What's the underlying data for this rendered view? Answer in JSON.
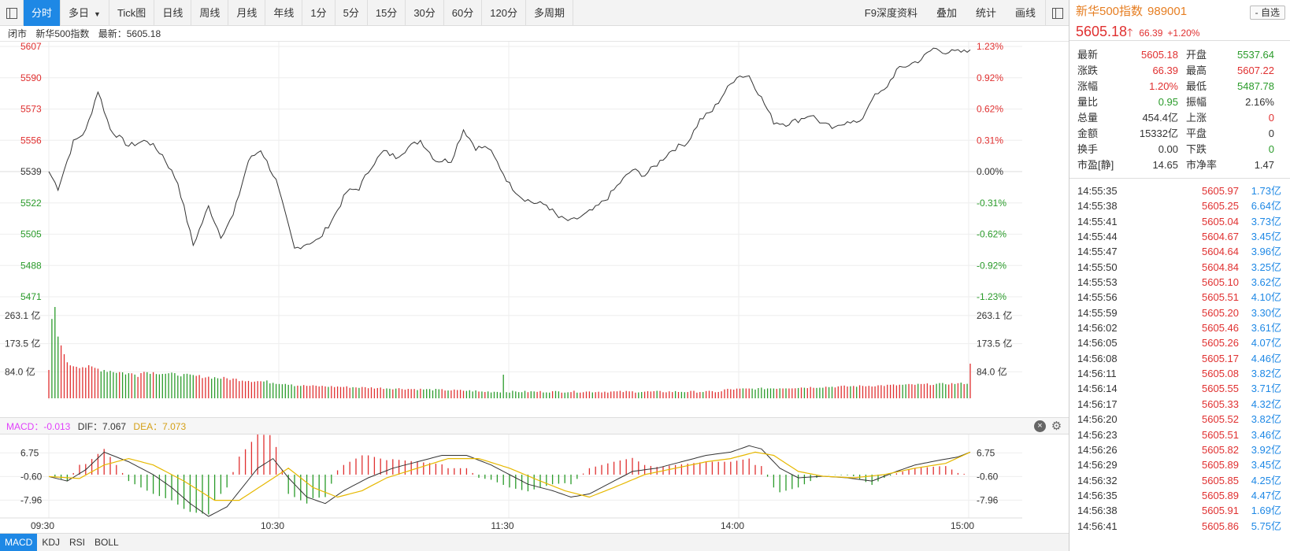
{
  "toolbar": {
    "tabs": [
      "分时",
      "多日",
      "Tick图",
      "日线",
      "周线",
      "月线",
      "年线",
      "1分",
      "5分",
      "15分",
      "30分",
      "60分",
      "120分",
      "多周期"
    ],
    "active": 0,
    "right": [
      "F9深度资料",
      "叠加",
      "统计",
      "画线"
    ]
  },
  "infoline": {
    "status": "闭市",
    "name": "新华500指数",
    "latest": "最新：5605.18"
  },
  "axes": {
    "price_left": [
      "5607",
      "5590",
      "5573",
      "5556",
      "5539",
      "5522",
      "5505",
      "5488",
      "5471"
    ],
    "pct_right": [
      "1.23%",
      "0.92%",
      "0.62%",
      "0.31%",
      "0.00%",
      "-0.31%",
      "-0.62%",
      "-0.92%",
      "-1.23%"
    ],
    "vol_labels": [
      "263.1 亿",
      "173.5 亿",
      "84.0 亿"
    ],
    "macd_labels": [
      "6.75",
      "-0.60",
      "-7.96"
    ],
    "time_labels": [
      "09:30",
      "10:30",
      "11:30",
      "14:00",
      "15:00"
    ]
  },
  "colors": {
    "up": "#e03030",
    "down": "#2a9b2a",
    "line": "#333333",
    "dea": "#e6b800",
    "accent": "#1e88e5"
  },
  "macd_header": {
    "macd": "MACD：-0.013",
    "dif": "DIF：7.067",
    "dea": "DEA：7.073"
  },
  "bottom_tabs": [
    "MACD",
    "KDJ",
    "RSI",
    "BOLL"
  ],
  "panel": {
    "title": "新华500指数",
    "code": "989001",
    "zixuan": "- 自选",
    "price": "5605.18",
    "change": "66.39",
    "pct": "+1.20%",
    "stats": [
      [
        "最新",
        "5605.18",
        "red",
        "开盘",
        "5537.64",
        "green"
      ],
      [
        "涨跌",
        "66.39",
        "red",
        "最高",
        "5607.22",
        "red"
      ],
      [
        "涨幅",
        "1.20%",
        "red",
        "最低",
        "5487.78",
        "green"
      ],
      [
        "量比",
        "0.95",
        "green",
        "振幅",
        "2.16%",
        "black"
      ],
      [
        "总量",
        "454.4亿",
        "black",
        "上涨",
        "0",
        "red"
      ],
      [
        "金额",
        "15332亿",
        "black",
        "平盘",
        "0",
        "black"
      ],
      [
        "换手",
        "0.00",
        "black",
        "下跌",
        "0",
        "green"
      ],
      [
        "市盈[静]",
        "14.65",
        "black",
        "市净率",
        "1.47",
        "black"
      ]
    ],
    "ticks": [
      [
        "14:55:35",
        "5605.97",
        "1.73亿"
      ],
      [
        "14:55:38",
        "5605.25",
        "6.64亿"
      ],
      [
        "14:55:41",
        "5605.04",
        "3.73亿"
      ],
      [
        "14:55:44",
        "5604.67",
        "3.45亿"
      ],
      [
        "14:55:47",
        "5604.64",
        "3.96亿"
      ],
      [
        "14:55:50",
        "5604.84",
        "3.25亿"
      ],
      [
        "14:55:53",
        "5605.10",
        "3.62亿"
      ],
      [
        "14:55:56",
        "5605.51",
        "4.10亿"
      ],
      [
        "14:55:59",
        "5605.20",
        "3.30亿"
      ],
      [
        "14:56:02",
        "5605.46",
        "3.61亿"
      ],
      [
        "14:56:05",
        "5605.26",
        "4.07亿"
      ],
      [
        "14:56:08",
        "5605.17",
        "4.46亿"
      ],
      [
        "14:56:11",
        "5605.08",
        "3.82亿"
      ],
      [
        "14:56:14",
        "5605.55",
        "3.71亿"
      ],
      [
        "14:56:17",
        "5605.33",
        "4.32亿"
      ],
      [
        "14:56:20",
        "5605.52",
        "3.82亿"
      ],
      [
        "14:56:23",
        "5605.51",
        "3.46亿"
      ],
      [
        "14:56:26",
        "5605.82",
        "3.92亿"
      ],
      [
        "14:56:29",
        "5605.89",
        "3.45亿"
      ],
      [
        "14:56:32",
        "5605.85",
        "4.25亿"
      ],
      [
        "14:56:35",
        "5605.89",
        "4.47亿"
      ],
      [
        "14:56:38",
        "5605.91",
        "1.69亿"
      ],
      [
        "14:56:41",
        "5605.86",
        "5.75亿"
      ]
    ]
  },
  "chart_data": {
    "type": "line",
    "price_range": [
      5471,
      5607
    ],
    "base": 5539,
    "price_keys": [
      [
        0,
        5539
      ],
      [
        3,
        5530
      ],
      [
        8,
        5555
      ],
      [
        12,
        5561
      ],
      [
        16,
        5583
      ],
      [
        20,
        5562
      ],
      [
        26,
        5553
      ],
      [
        32,
        5556
      ],
      [
        37,
        5548
      ],
      [
        42,
        5533
      ],
      [
        47,
        5499
      ],
      [
        52,
        5520
      ],
      [
        56,
        5504
      ],
      [
        60,
        5515
      ],
      [
        65,
        5545
      ],
      [
        69,
        5551
      ],
      [
        74,
        5534
      ],
      [
        80,
        5497
      ],
      [
        84,
        5500
      ],
      [
        88,
        5502
      ],
      [
        93,
        5515
      ],
      [
        97,
        5528
      ],
      [
        101,
        5530
      ],
      [
        105,
        5542
      ],
      [
        109,
        5550
      ],
      [
        113,
        5547
      ],
      [
        117,
        5552
      ],
      [
        121,
        5556
      ],
      [
        126,
        5545
      ],
      [
        131,
        5545
      ],
      [
        135,
        5562
      ],
      [
        139,
        5552
      ],
      [
        143,
        5552
      ],
      [
        146,
        5544
      ],
      [
        150,
        5532
      ],
      [
        154,
        5525
      ],
      [
        158,
        5522
      ],
      [
        162,
        5521
      ],
      [
        166,
        5514
      ],
      [
        170,
        5512
      ],
      [
        174,
        5515
      ],
      [
        178,
        5519
      ],
      [
        182,
        5525
      ],
      [
        186,
        5533
      ],
      [
        190,
        5540
      ],
      [
        194,
        5537
      ],
      [
        198,
        5543
      ],
      [
        203,
        5551
      ],
      [
        208,
        5555
      ],
      [
        212,
        5567
      ],
      [
        216,
        5572
      ],
      [
        220,
        5582
      ],
      [
        224,
        5591
      ],
      [
        228,
        5591
      ],
      [
        232,
        5579
      ],
      [
        236,
        5566
      ],
      [
        240,
        5565
      ],
      [
        244,
        5567
      ],
      [
        248,
        5570
      ],
      [
        252,
        5565
      ],
      [
        256,
        5562
      ],
      [
        260,
        5567
      ],
      [
        264,
        5565
      ],
      [
        268,
        5579
      ],
      [
        272,
        5583
      ],
      [
        276,
        5594
      ],
      [
        280,
        5597
      ],
      [
        284,
        5600
      ],
      [
        288,
        5606
      ],
      [
        292,
        5604
      ]
    ],
    "volume_range": [
      0,
      300
    ],
    "macd_range": [
      -13,
      12
    ],
    "dif_keys": [
      [
        0,
        -0.6
      ],
      [
        6,
        -2.0
      ],
      [
        12,
        1.5
      ],
      [
        18,
        7
      ],
      [
        26,
        4
      ],
      [
        34,
        0
      ],
      [
        40,
        -4
      ],
      [
        46,
        -9
      ],
      [
        52,
        -13
      ],
      [
        58,
        -10
      ],
      [
        63,
        -4
      ],
      [
        68,
        2
      ],
      [
        73,
        5
      ],
      [
        78,
        -1
      ],
      [
        84,
        -7
      ],
      [
        90,
        -9
      ],
      [
        96,
        -5
      ],
      [
        104,
        -1
      ],
      [
        112,
        2
      ],
      [
        120,
        4
      ],
      [
        128,
        6
      ],
      [
        136,
        6
      ],
      [
        144,
        3
      ],
      [
        150,
        0
      ],
      [
        156,
        -3
      ],
      [
        164,
        -5
      ],
      [
        170,
        -7
      ],
      [
        176,
        -6
      ],
      [
        182,
        -3
      ],
      [
        190,
        1
      ],
      [
        198,
        2
      ],
      [
        206,
        4
      ],
      [
        214,
        6
      ],
      [
        222,
        7
      ],
      [
        228,
        9
      ],
      [
        232,
        8
      ],
      [
        238,
        2
      ],
      [
        244,
        -1
      ],
      [
        252,
        -0.5
      ],
      [
        260,
        -1
      ],
      [
        268,
        -2
      ],
      [
        276,
        1
      ],
      [
        282,
        3
      ],
      [
        290,
        4.5
      ],
      [
        296,
        5.5
      ],
      [
        300,
        7
      ]
    ],
    "dea_keys": [
      [
        0,
        -0.6
      ],
      [
        10,
        -1.2
      ],
      [
        18,
        3
      ],
      [
        26,
        5
      ],
      [
        34,
        3
      ],
      [
        44,
        -2
      ],
      [
        54,
        -8
      ],
      [
        62,
        -8
      ],
      [
        70,
        -3
      ],
      [
        78,
        2
      ],
      [
        86,
        -4
      ],
      [
        94,
        -7
      ],
      [
        102,
        -5
      ],
      [
        110,
        -1
      ],
      [
        120,
        2
      ],
      [
        130,
        5
      ],
      [
        140,
        5
      ],
      [
        150,
        2
      ],
      [
        160,
        -2
      ],
      [
        168,
        -5
      ],
      [
        176,
        -7
      ],
      [
        184,
        -4
      ],
      [
        194,
        0
      ],
      [
        204,
        2
      ],
      [
        214,
        4
      ],
      [
        222,
        5
      ],
      [
        230,
        7
      ],
      [
        236,
        6
      ],
      [
        244,
        1
      ],
      [
        252,
        -0.5
      ],
      [
        262,
        -1
      ],
      [
        272,
        0
      ],
      [
        282,
        2
      ],
      [
        292,
        3.5
      ],
      [
        300,
        7
      ]
    ]
  }
}
